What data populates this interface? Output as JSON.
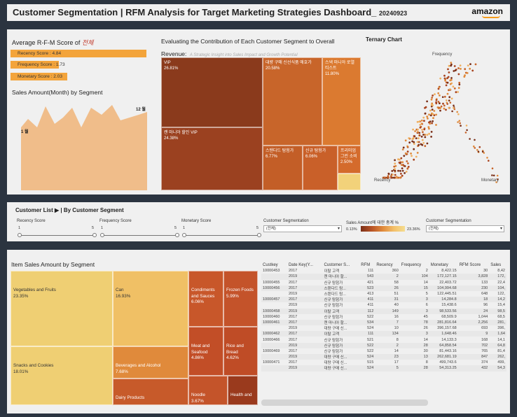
{
  "header": {
    "title": "Customer Segmentation | RFM Analysis for Target Marketing Strategies Dashboard_",
    "date": "20240923",
    "logo": "amazon"
  },
  "rfm_avg": {
    "title": "Average R-F-M Score of",
    "title_suffix": "전체",
    "bars": [
      {
        "label": "Recency Score : 4.84",
        "value": 4.84
      },
      {
        "label": "Frequency Score : 1.73",
        "value": 1.73
      },
      {
        "label": "Monetary Score : 2.03",
        "value": 2.03
      }
    ]
  },
  "sales_month": {
    "title": "Sales Amount(Month) by Segment",
    "start_label": "1 월",
    "end_label": "12 월"
  },
  "contribution": {
    "title_line1": "Evaluating the Contribution of Each Customer Segment to Overall",
    "title_line2": "Revenue:",
    "subtitle": "A Strategic Insight into Sales Impact and Growth Potential",
    "cells": [
      {
        "name": "VIP",
        "pct": "26.81%"
      },
      {
        "name": "대량 구매 신선식품 애호가",
        "pct": "20.58%"
      },
      {
        "name": "스낵 마니아 로열티스트",
        "pct": "11.80%"
      },
      {
        "name": "캔 마니아 할인 VIP",
        "pct": "24.38%"
      },
      {
        "name": "스탠다드 탐험가",
        "pct": "6.77%"
      },
      {
        "name": "신규 탐험가",
        "pct": "6.06%"
      },
      {
        "name": "프리미엄 그린 소비",
        "pct": "2.50%"
      }
    ]
  },
  "ternary": {
    "title": "Ternary Chart",
    "top": "Frequency",
    "left": "Recency",
    "right": "Monetary"
  },
  "filters": {
    "title": "Customer List ▶ | By Customer Segment",
    "recency": {
      "label": "Recency Score",
      "min": "1",
      "max": "5"
    },
    "frequency": {
      "label": "Frequency Score",
      "min": "1",
      "max": "5"
    },
    "monetary": {
      "label": "Monetary Score",
      "min": "1",
      "max": "5"
    },
    "segment1": {
      "label": "Customer Segmentation",
      "value": "(전체)"
    },
    "legend": {
      "label": "Sales Amount에 대한 총계 %",
      "min": "0.13%",
      "max": "23.36%"
    },
    "segment2": {
      "label": "Customer Segmentation",
      "value": "(전체)"
    }
  },
  "item_sales": {
    "title": "Item Sales Amount by Segment",
    "cells": [
      {
        "name": "Vegetables and Fruits",
        "pct": "23.35%"
      },
      {
        "name": "Can",
        "pct": "16.93%"
      },
      {
        "name": "Condiments and Sauces",
        "pct": "6.06%"
      },
      {
        "name": "Frozen Foods",
        "pct": "5.99%"
      },
      {
        "name": "Snacks and Cookies",
        "pct": "18.01%"
      },
      {
        "name": "Beverages and Alcohol",
        "pct": "7.68%"
      },
      {
        "name": "Meat and Seafood",
        "pct": "4.86%"
      },
      {
        "name": "Rice and Bread",
        "pct": "4.62%"
      },
      {
        "name": "Dairy Products",
        "pct": ""
      },
      {
        "name": "Noodle",
        "pct": "3.67%"
      },
      {
        "name": "Health and",
        "pct": ""
      }
    ]
  },
  "customer_table": {
    "columns": [
      "Custkey",
      "Date Key(Y...",
      "Customer S...",
      "RFM",
      "Recency",
      "Frequency",
      "Monetary",
      "RFM Score",
      "Sales"
    ],
    "rows": [
      [
        "10000453",
        "2017",
        "이탈 고객",
        "111",
        "360",
        "2",
        "8,422.15",
        "30",
        "8,42"
      ],
      [
        "",
        "2019",
        "캔 마니아 할...",
        "543",
        "2",
        "104",
        "172,127.15",
        "3,828",
        "172,"
      ],
      [
        "10000455",
        "2017",
        "신규 탐험가",
        "421",
        "58",
        "14",
        "22,403.72",
        "133",
        "22,4"
      ],
      [
        "10000456",
        "2017",
        "스탠다드 탐...",
        "523",
        "26",
        "15",
        "104,994.68",
        "230",
        "104,"
      ],
      [
        "",
        "2019",
        "스탠다드 탐...",
        "413",
        "51",
        "5",
        "122,445.51",
        "648",
        "122,"
      ],
      [
        "10000457",
        "2017",
        "신규 탐험가",
        "411",
        "31",
        "3",
        "14,284.8",
        "18",
        "14,2"
      ],
      [
        "",
        "2019",
        "신규 탐험가",
        "411",
        "40",
        "6",
        "15,438.6",
        "96",
        "15,4"
      ],
      [
        "10000458",
        "2019",
        "이탈 고객",
        "112",
        "149",
        "3",
        "98,533.56",
        "24",
        "98,5"
      ],
      [
        "10000460",
        "2017",
        "신규 탐험가",
        "522",
        "16",
        "45",
        "68,509.9",
        "1,044",
        "68,5"
      ],
      [
        "10000461",
        "2017",
        "캔 마니아 할...",
        "534",
        "7",
        "78",
        "281,816.64",
        "2,256",
        "281,"
      ],
      [
        "",
        "2019",
        "대량 구매 신...",
        "524",
        "10",
        "26",
        "396,157.68",
        "693",
        "396,"
      ],
      [
        "10000462",
        "2017",
        "이탈 고객",
        "111",
        "134",
        "3",
        "1,648.46",
        "9",
        "1,64"
      ],
      [
        "10000466",
        "2017",
        "신규 탐험가",
        "521",
        "8",
        "14",
        "14,133.3",
        "168",
        "14,1"
      ],
      [
        "",
        "2019",
        "신규 탐험가",
        "522",
        "2",
        "28",
        "64,858.54",
        "702",
        "64,8"
      ],
      [
        "10000469",
        "2017",
        "신규 탐험가",
        "522",
        "14",
        "30",
        "81,443.16",
        "765",
        "81,4"
      ],
      [
        "",
        "2019",
        "대량 구매 신...",
        "524",
        "23",
        "13",
        "262,681.19",
        "847",
        "262,"
      ],
      [
        "10000471",
        "2017",
        "대량 구매 신...",
        "515",
        "17",
        "8",
        "499,743.6",
        "374",
        "499,"
      ],
      [
        "",
        "2019",
        "대량 구매 신...",
        "524",
        "5",
        "28",
        "54,313.25",
        "432",
        "54,3"
      ]
    ]
  },
  "colors": {
    "accent": "#f3a43b",
    "dark": "#8a3a1c",
    "bg": "#2b3440",
    "panel": "#f0f0f0"
  }
}
